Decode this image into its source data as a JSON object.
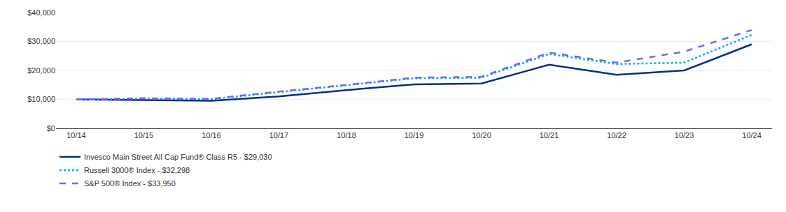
{
  "chart_data": {
    "type": "line",
    "categories": [
      "10/14",
      "10/15",
      "10/16",
      "10/17",
      "10/18",
      "10/19",
      "10/20",
      "10/21",
      "10/22",
      "10/23",
      "10/24"
    ],
    "series": [
      {
        "name": "Invesco Main Street All Cap Fund® Class R5 - $29,030",
        "color": "#003087",
        "line_style": "solid",
        "values": [
          10000,
          9700,
          9500,
          11000,
          13200,
          15200,
          15500,
          22000,
          18500,
          20000,
          29030
        ]
      },
      {
        "name": "Russell 3000® Index - $32,298",
        "color": "#00AEEF",
        "line_style": "dotted",
        "values": [
          10000,
          10300,
          10100,
          12500,
          14800,
          17300,
          17500,
          25700,
          22200,
          22700,
          32298
        ]
      },
      {
        "name": "S&P 500® Index - $33,950",
        "color": "#7B68EE",
        "line_style": "dashed",
        "values": [
          10000,
          10400,
          10200,
          12700,
          15000,
          17500,
          17800,
          26200,
          22700,
          26500,
          33950
        ]
      }
    ],
    "ylim": [
      0,
      40000
    ],
    "yticks": [
      {
        "value": 0,
        "label": "$0"
      },
      {
        "value": 10000,
        "label": "$10,000"
      },
      {
        "value": 20000,
        "label": "$20,000"
      },
      {
        "value": 30000,
        "label": "$30,000"
      },
      {
        "value": 40000,
        "label": "$40,000"
      }
    ],
    "grid": true,
    "legend": "bottom"
  }
}
